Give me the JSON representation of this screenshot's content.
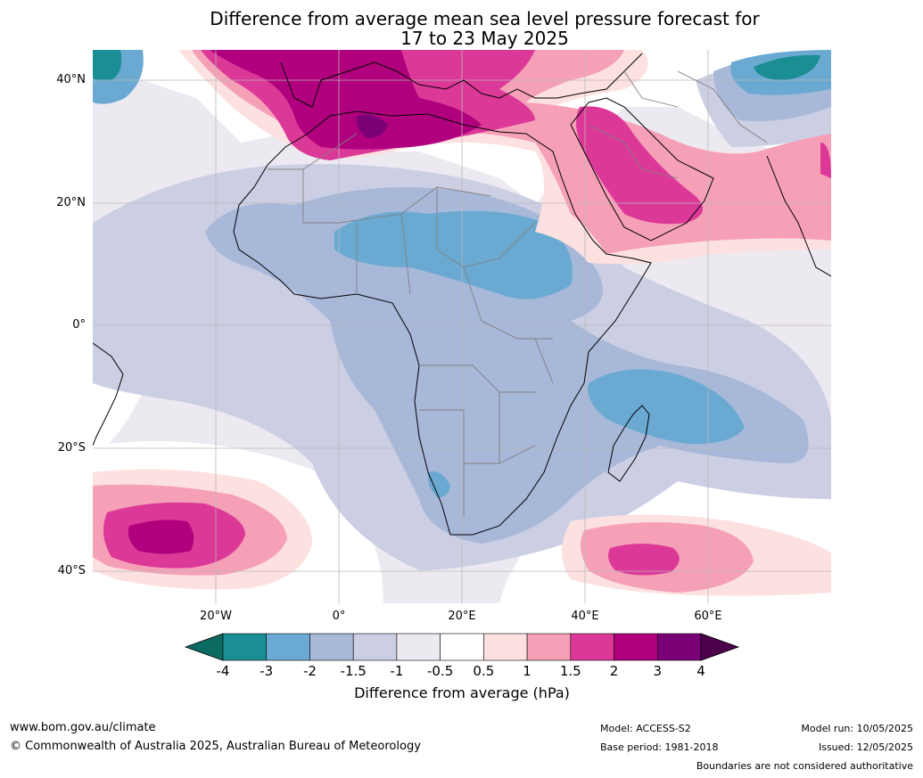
{
  "title_line1": "Difference from average mean sea level pressure forecast for",
  "title_line2": "17 to 23 May 2025",
  "lat_labels": [
    "40°N",
    "20°N",
    "0°",
    "20°S",
    "40°S"
  ],
  "lon_labels": [
    "20°W",
    "0°",
    "20°E",
    "40°E",
    "60°E"
  ],
  "colorbar": {
    "ticks": [
      "-4",
      "-3",
      "-2",
      "-1.5",
      "-1",
      "-0.5",
      "0.5",
      "1",
      "1.5",
      "2",
      "3",
      "4"
    ],
    "colors": [
      "#1b8e94",
      "#6aaad2",
      "#a8b8d9",
      "#cccfe4",
      "#ede9f1",
      "#ffffff",
      "#fde0e0",
      "#f6a0b8",
      "#dc3898",
      "#b0007e",
      "#7a0078"
    ],
    "under_color": "#0b6b63",
    "over_color": "#4d004b",
    "label": "Difference from average (hPa)"
  },
  "footer": {
    "website": "www.bom.gov.au/climate",
    "copyright": "© Commonwealth of Australia 2025, Australian Bureau of Meteorology",
    "model": "Model: ACCESS-S2",
    "base_period": "Base period: 1981-2018",
    "model_run": "Model run: 10/05/2025",
    "issued": "Issued: 12/05/2025",
    "disclaimer": "Boundaries are not considered authoritative"
  }
}
